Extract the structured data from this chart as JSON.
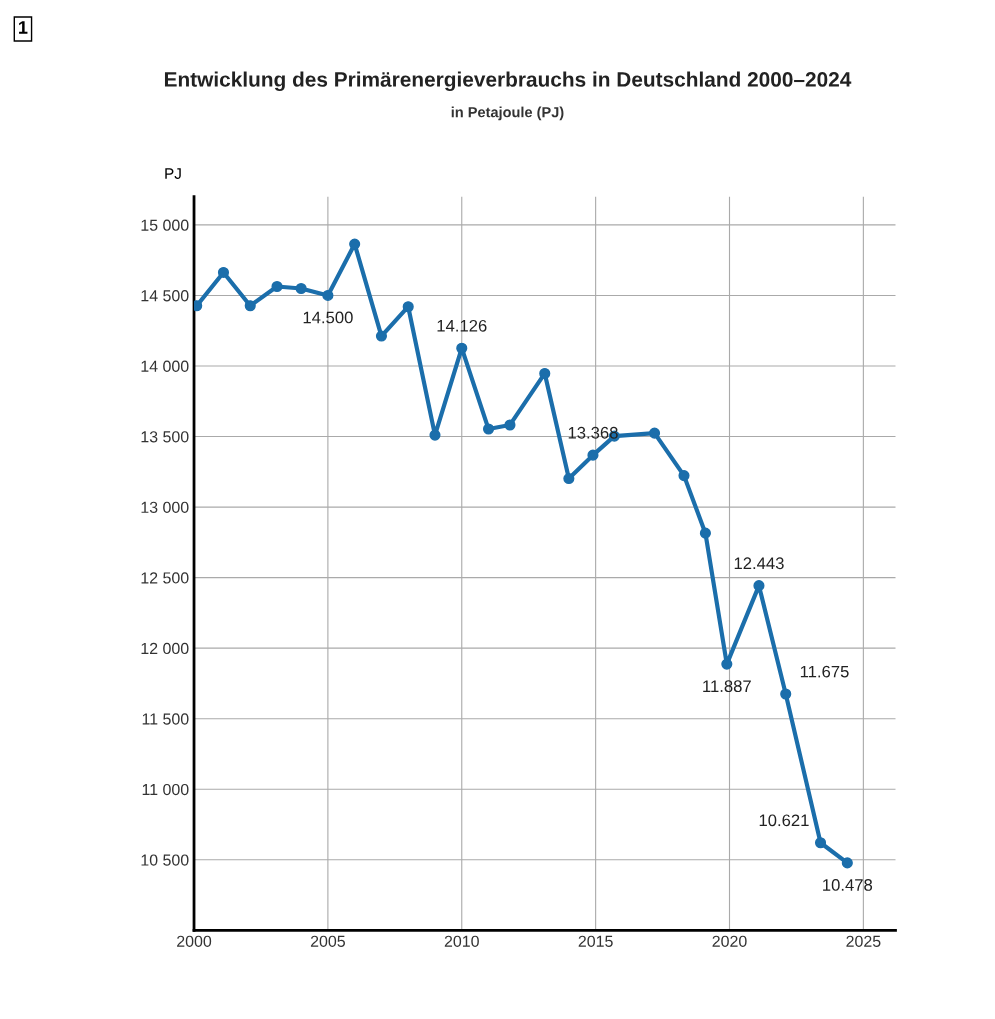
{
  "chart_data": {
    "type": "line",
    "title": "Entwicklung des Primärenergieverbrauchs in Deutschland 2000–2024",
    "subtitle": "in Petajoule (PJ)",
    "ylabel": "PJ",
    "annotations": [
      "1"
    ],
    "x": [
      2000.1,
      2001.1,
      2002.1,
      2003.1,
      2004.0,
      2005.0,
      2006.0,
      2007.0,
      2008.0,
      2009.0,
      2010.0,
      2011.0,
      2011.8,
      2013.1,
      2014.0,
      2014.9,
      2015.7,
      2017.2,
      2018.3,
      2019.1,
      2019.9,
      2021.1,
      2022.1,
      2023.4,
      2024.4
    ],
    "series": [
      {
        "color": "#1b6eab",
        "values": [
          14427,
          14663,
          14427,
          14563,
          14549,
          14500,
          14864,
          14212,
          14420,
          13510,
          14126,
          13553,
          13582,
          13947,
          13202,
          13368,
          13503,
          13524,
          13223,
          12815,
          11887,
          12443,
          11675,
          10621,
          10478
        ],
        "value_labels": [
          null,
          null,
          null,
          null,
          null,
          "14.500",
          null,
          null,
          null,
          null,
          "14.126",
          null,
          null,
          null,
          null,
          "13.368",
          null,
          null,
          null,
          null,
          "11.887",
          "12.443",
          "11.675",
          "10.621",
          "10.478"
        ]
      }
    ],
    "xlim": [
      2000,
      2026.2
    ],
    "ylim": [
      10000,
      15200
    ],
    "xticks": [
      2000,
      2005,
      2010,
      2015,
      2020,
      2025
    ],
    "yticks": [
      {
        "value": 10500,
        "label": "10 500"
      },
      {
        "value": 11000,
        "label": "11 000"
      },
      {
        "value": 11500,
        "label": "11 500"
      },
      {
        "value": 12000,
        "label": "12 000"
      },
      {
        "value": 12500,
        "label": "12 500"
      },
      {
        "value": 13000,
        "label": "13 000"
      },
      {
        "value": 13500,
        "label": "13 500"
      },
      {
        "value": 14000,
        "label": "14 000"
      },
      {
        "value": 14500,
        "label": "14 500"
      },
      {
        "value": 15000,
        "label": "15 000"
      }
    ],
    "grid": true,
    "marker": "circle",
    "line_style": "solid"
  }
}
